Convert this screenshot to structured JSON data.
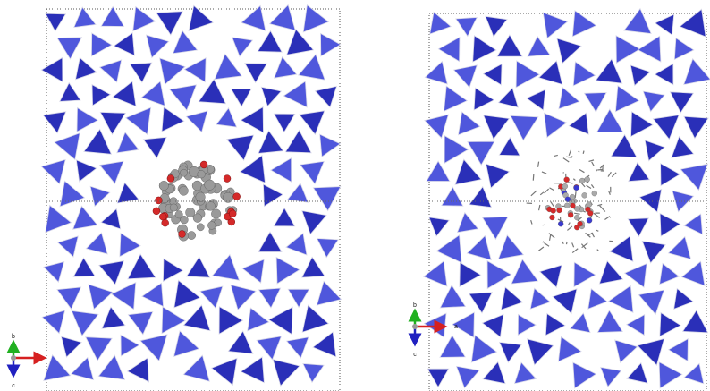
{
  "panels": [
    {
      "axes": {
        "b": "b",
        "c": "c"
      }
    },
    {
      "axes": {
        "b": "b",
        "a": "a",
        "c": "c"
      }
    }
  ]
}
